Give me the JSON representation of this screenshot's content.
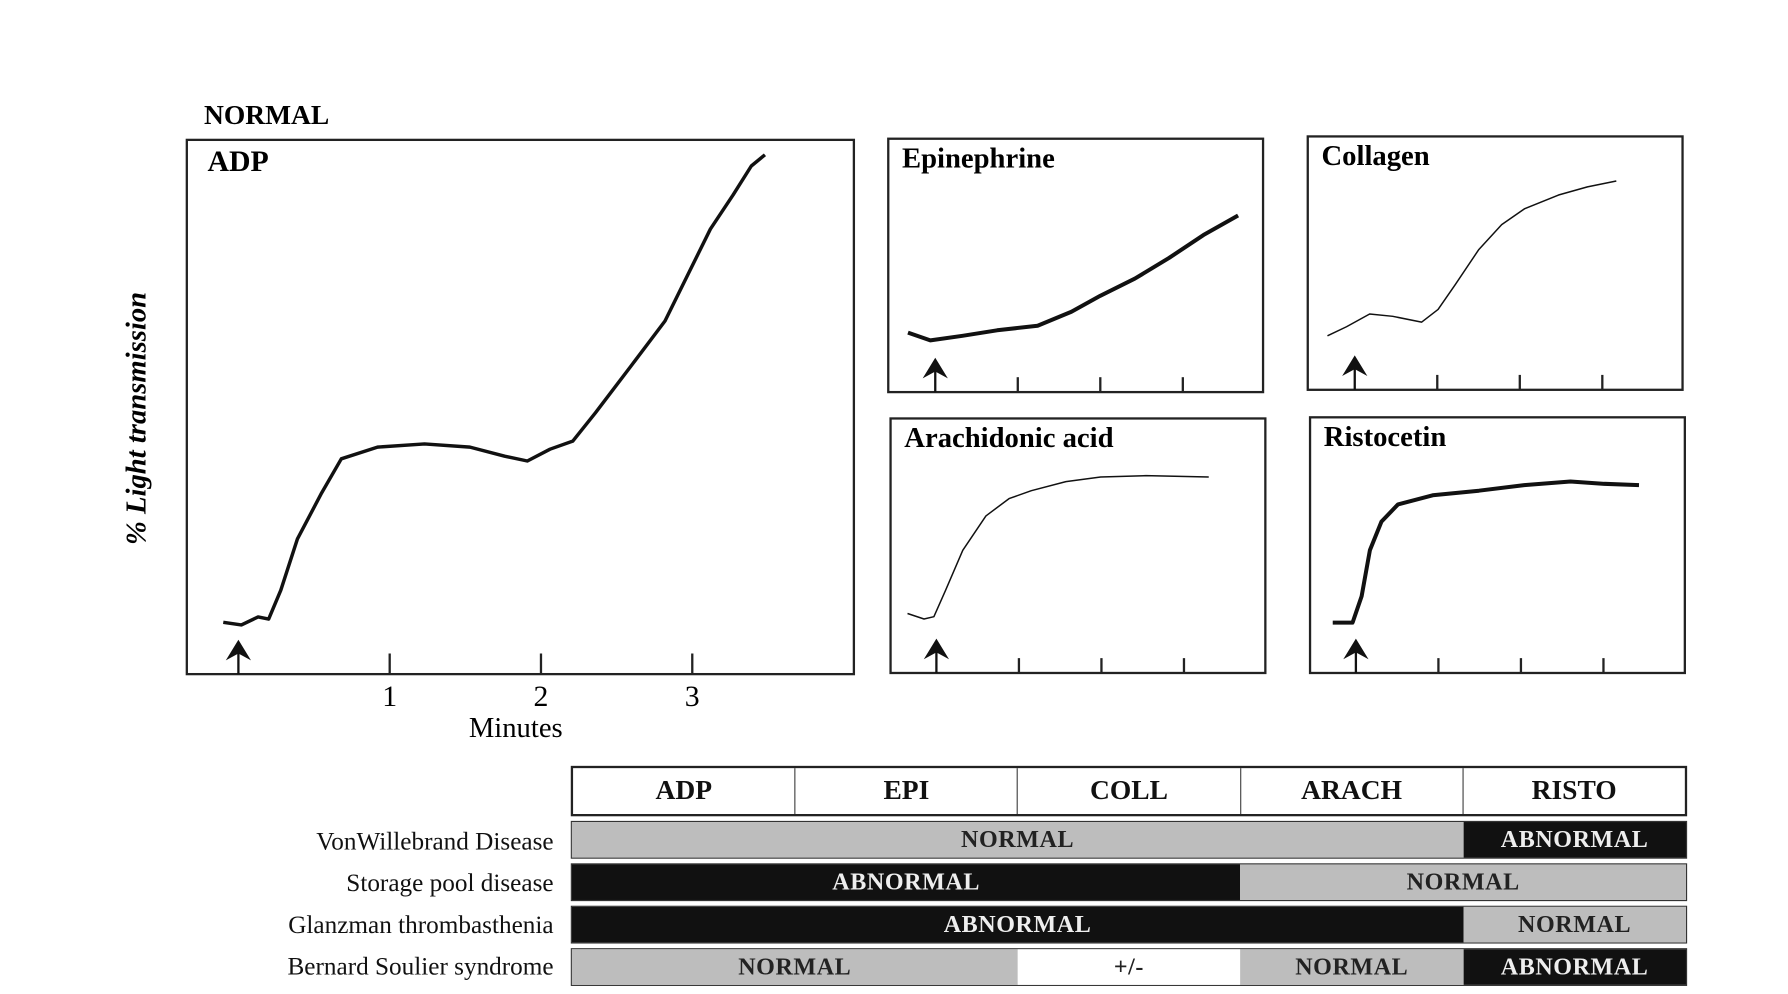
{
  "heading": "NORMAL",
  "colors": {
    "normal_fill": "#bdbdbd",
    "abnormal_fill": "#111111",
    "partial_fill": "#ffffff",
    "trace": "#111111"
  },
  "chart_data": [
    {
      "type": "line",
      "title": "ADP",
      "xlabel": "Minutes",
      "ylabel": "% Light transmission",
      "x_ticks": [
        "1",
        "2",
        "3"
      ],
      "xlim": [
        -0.3,
        4.1
      ],
      "ylim": [
        0,
        100
      ],
      "grid": false,
      "marker": "arrow-at-0",
      "x": [
        -0.1,
        0.02,
        0.13,
        0.2,
        0.28,
        0.39,
        0.55,
        0.68,
        0.92,
        1.23,
        1.53,
        1.76,
        1.91,
        2.06,
        2.21,
        2.36,
        2.59,
        2.82,
        2.97,
        3.12,
        3.27,
        3.39,
        3.48
      ],
      "y": [
        9.7,
        9.2,
        10.7,
        10.3,
        15.7,
        25.3,
        33.9,
        40.3,
        42.5,
        43.1,
        42.5,
        40.8,
        39.9,
        42.1,
        43.6,
        48.9,
        57.5,
        66.1,
        74.7,
        83.3,
        89.7,
        95.1,
        97.2
      ]
    },
    {
      "type": "line",
      "title": "Epinephrine",
      "xlim": [
        -0.57,
        3.97
      ],
      "ylim": [
        0,
        100
      ],
      "x": [
        -0.33,
        -0.06,
        0.33,
        0.75,
        1.24,
        1.65,
        2.0,
        2.42,
        2.83,
        3.25,
        3.67
      ],
      "y": [
        23.5,
        20.4,
        22.2,
        24.4,
        26.2,
        31.7,
        38.0,
        44.8,
        52.9,
        62.0,
        69.7
      ]
    },
    {
      "type": "line",
      "title": "Collagen",
      "xlim": [
        -0.57,
        3.97
      ],
      "ylim": [
        0,
        100
      ],
      "x": [
        -0.33,
        -0.1,
        0.18,
        0.46,
        0.81,
        1.01,
        1.22,
        1.5,
        1.78,
        2.06,
        2.47,
        2.82,
        3.17
      ],
      "y": [
        21.3,
        24.9,
        29.9,
        29.0,
        26.7,
        31.7,
        41.6,
        55.2,
        65.2,
        71.5,
        76.9,
        80.1,
        82.4
      ]
    },
    {
      "type": "line",
      "title": "Arachidonic acid",
      "xlim": [
        -0.57,
        3.97
      ],
      "ylim": [
        0,
        100
      ],
      "x": [
        -0.35,
        -0.15,
        -0.03,
        0.11,
        0.32,
        0.6,
        0.88,
        1.15,
        1.57,
        1.99,
        2.54,
        3.3
      ],
      "y": [
        23.4,
        21.2,
        22.1,
        32.4,
        48.2,
        61.7,
        68.5,
        71.6,
        75.2,
        77.0,
        77.5,
        77.0
      ]
    },
    {
      "type": "line",
      "title": "Ristocetin",
      "xlim": [
        -0.57,
        3.97
      ],
      "ylim": [
        0,
        100
      ],
      "x": [
        -0.28,
        -0.04,
        0.07,
        0.17,
        0.31,
        0.51,
        0.93,
        1.49,
        2.04,
        2.6,
        3.01,
        3.43
      ],
      "y": [
        19.7,
        19.7,
        30.0,
        48.0,
        59.2,
        65.9,
        69.5,
        71.3,
        73.5,
        74.9,
        74.0,
        73.5
      ]
    }
  ],
  "table": {
    "columns": [
      "ADP",
      "EPI",
      "COLL",
      "ARACH",
      "RISTO"
    ],
    "rows": [
      {
        "label": "VonWillebrand Disease",
        "cells": [
          {
            "text": "NORMAL",
            "span": 4,
            "status": "normal"
          },
          {
            "text": "ABNORMAL",
            "span": 1,
            "status": "abnormal"
          }
        ]
      },
      {
        "label": "Storage pool disease",
        "cells": [
          {
            "text": "ABNORMAL",
            "span": 3,
            "status": "abnormal"
          },
          {
            "text": "NORMAL",
            "span": 2,
            "status": "normal"
          }
        ]
      },
      {
        "label": "Glanzman thrombasthenia",
        "cells": [
          {
            "text": "ABNORMAL",
            "span": 4,
            "status": "abnormal"
          },
          {
            "text": "NORMAL",
            "span": 1,
            "status": "normal"
          }
        ]
      },
      {
        "label": "Bernard Soulier syndrome",
        "cells": [
          {
            "text": "NORMAL",
            "span": 2,
            "status": "normal"
          },
          {
            "text": "+/-",
            "span": 1,
            "status": "partial"
          },
          {
            "text": "NORMAL",
            "span": 1,
            "status": "normal"
          },
          {
            "text": "ABNORMAL",
            "span": 1,
            "status": "abnormal"
          }
        ]
      }
    ]
  }
}
